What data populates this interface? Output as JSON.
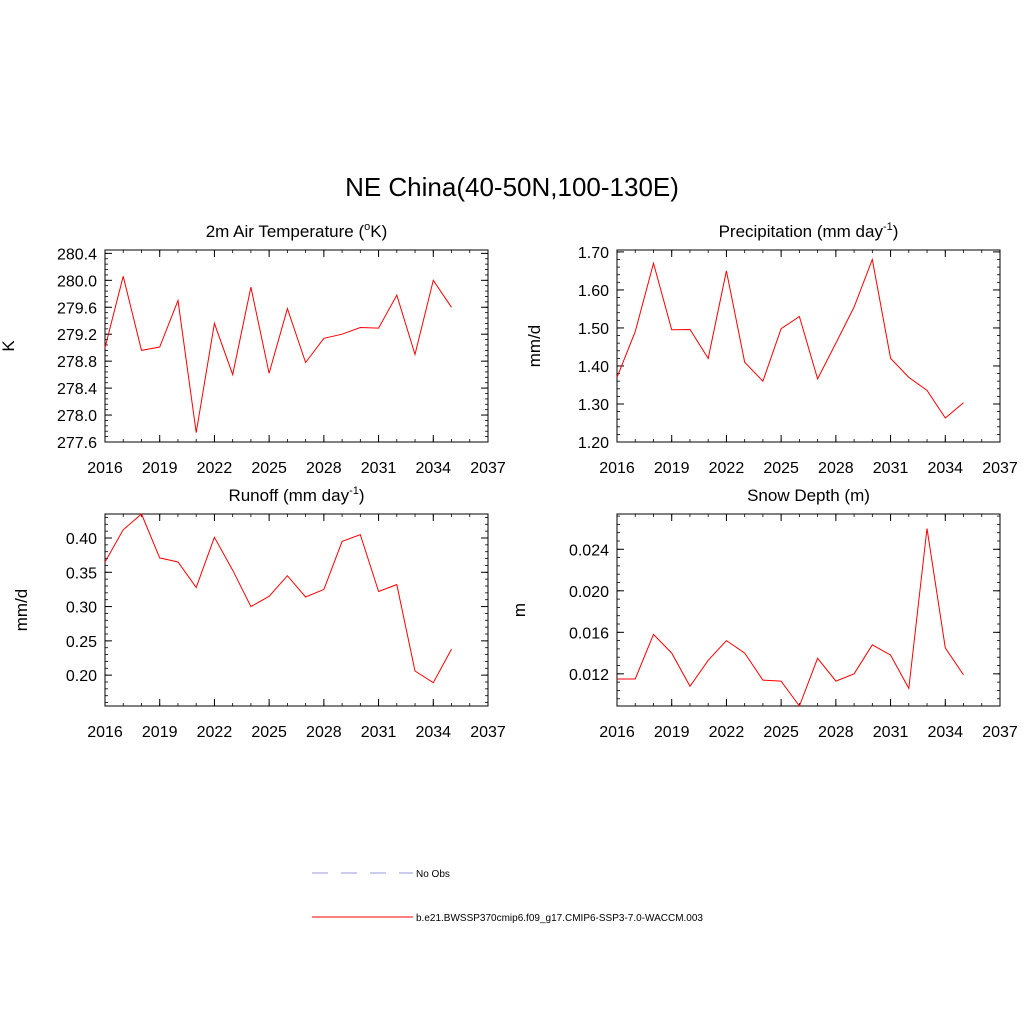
{
  "figure": {
    "title": "NE China(40-50N,100-130E)"
  },
  "legend": {
    "entries": [
      {
        "label": "No Obs",
        "color": "#9999dd",
        "style": "dashed"
      },
      {
        "label": "b.e21.BWSSP370cmip6.f09_g17.CMIP6-SSP3-7.0-WACCM.003",
        "color": "#ff0000",
        "style": "solid"
      }
    ]
  },
  "chart_data": [
    {
      "type": "line",
      "title": "2m Air Temperature (",
      "title_sup": "o",
      "title_after": "K)",
      "ylabel": "K",
      "xlim": [
        2016,
        2037
      ],
      "ylim": [
        277.6,
        280.45
      ],
      "xticks": [
        "2016",
        "2019",
        "2022",
        "2025",
        "2028",
        "2031",
        "2034",
        "2037"
      ],
      "yticks": [
        "277.6",
        "278.0",
        "278.4",
        "278.8",
        "279.2",
        "279.6",
        "280.0",
        "280.4"
      ],
      "x": [
        2016,
        2017,
        2018,
        2019,
        2020,
        2021,
        2022,
        2023,
        2024,
        2025,
        2026,
        2027,
        2028,
        2029,
        2030,
        2031,
        2032,
        2033,
        2034,
        2035
      ],
      "series": [
        {
          "name": "b.e21.BWSSP370cmip6.f09_g17.CMIP6-SSP3-7.0-WACCM.003",
          "color": "#ff0000",
          "values": [
            279.0,
            280.06,
            278.96,
            279.01,
            279.7,
            277.74,
            279.36,
            278.6,
            279.9,
            278.62,
            279.58,
            278.78,
            279.14,
            279.2,
            279.3,
            279.29,
            279.78,
            278.9,
            280.0,
            279.6
          ]
        }
      ]
    },
    {
      "type": "line",
      "title": "Precipitation (mm day",
      "title_sup": "-1",
      "title_after": ")",
      "ylabel": "mm/d",
      "xlim": [
        2016,
        2037
      ],
      "ylim": [
        1.2,
        1.705
      ],
      "xticks": [
        "2016",
        "2019",
        "2022",
        "2025",
        "2028",
        "2031",
        "2034",
        "2037"
      ],
      "yticks": [
        "1.20",
        "1.30",
        "1.40",
        "1.50",
        "1.60",
        "1.70"
      ],
      "x": [
        2016,
        2017,
        2018,
        2019,
        2020,
        2021,
        2022,
        2023,
        2024,
        2025,
        2026,
        2027,
        2028,
        2029,
        2030,
        2031,
        2032,
        2033,
        2034,
        2035
      ],
      "series": [
        {
          "name": "b.e21.BWSSP370cmip6.f09_g17.CMIP6-SSP3-7.0-WACCM.003",
          "color": "#ff0000",
          "values": [
            1.37,
            1.49,
            1.67,
            1.495,
            1.496,
            1.42,
            1.65,
            1.41,
            1.36,
            1.498,
            1.53,
            1.366,
            1.46,
            1.555,
            1.68,
            1.42,
            1.37,
            1.336,
            1.263,
            1.303
          ]
        }
      ]
    },
    {
      "type": "line",
      "title": "Runoff (mm day",
      "title_sup": "-1",
      "title_after": ")",
      "ylabel": "mm/d",
      "xlim": [
        2016,
        2037
      ],
      "ylim": [
        0.155,
        0.435
      ],
      "xticks": [
        "2016",
        "2019",
        "2022",
        "2025",
        "2028",
        "2031",
        "2034",
        "2037"
      ],
      "yticks": [
        "0.20",
        "0.25",
        "0.30",
        "0.35",
        "0.40"
      ],
      "x": [
        2016,
        2017,
        2018,
        2019,
        2020,
        2021,
        2022,
        2023,
        2024,
        2025,
        2026,
        2027,
        2028,
        2029,
        2030,
        2031,
        2032,
        2033,
        2034,
        2035
      ],
      "series": [
        {
          "name": "b.e21.BWSSP370cmip6.f09_g17.CMIP6-SSP3-7.0-WACCM.003",
          "color": "#ff0000",
          "values": [
            0.365,
            0.412,
            0.435,
            0.371,
            0.365,
            0.328,
            0.401,
            0.353,
            0.3,
            0.315,
            0.345,
            0.314,
            0.325,
            0.395,
            0.405,
            0.322,
            0.332,
            0.206,
            0.189,
            0.238
          ]
        }
      ]
    },
    {
      "type": "line",
      "title": "Snow Depth (m)",
      "title_sup": "",
      "title_after": "",
      "ylabel": "m",
      "xlim": [
        2016,
        2037
      ],
      "ylim": [
        0.0089,
        0.0274
      ],
      "xticks": [
        "2016",
        "2019",
        "2022",
        "2025",
        "2028",
        "2031",
        "2034",
        "2037"
      ],
      "yticks": [
        "0.012",
        "0.016",
        "0.020",
        "0.024"
      ],
      "x": [
        2016,
        2017,
        2018,
        2019,
        2020,
        2021,
        2022,
        2023,
        2024,
        2025,
        2026,
        2027,
        2028,
        2029,
        2030,
        2031,
        2032,
        2033,
        2034,
        2035
      ],
      "series": [
        {
          "name": "b.e21.BWSSP370cmip6.f09_g17.CMIP6-SSP3-7.0-WACCM.003",
          "color": "#ff0000",
          "values": [
            0.0115,
            0.0115,
            0.0158,
            0.014,
            0.0108,
            0.0133,
            0.0152,
            0.014,
            0.0114,
            0.0113,
            0.0089,
            0.0135,
            0.0113,
            0.012,
            0.0148,
            0.0138,
            0.0106,
            0.026,
            0.0145,
            0.0119
          ]
        }
      ]
    }
  ]
}
